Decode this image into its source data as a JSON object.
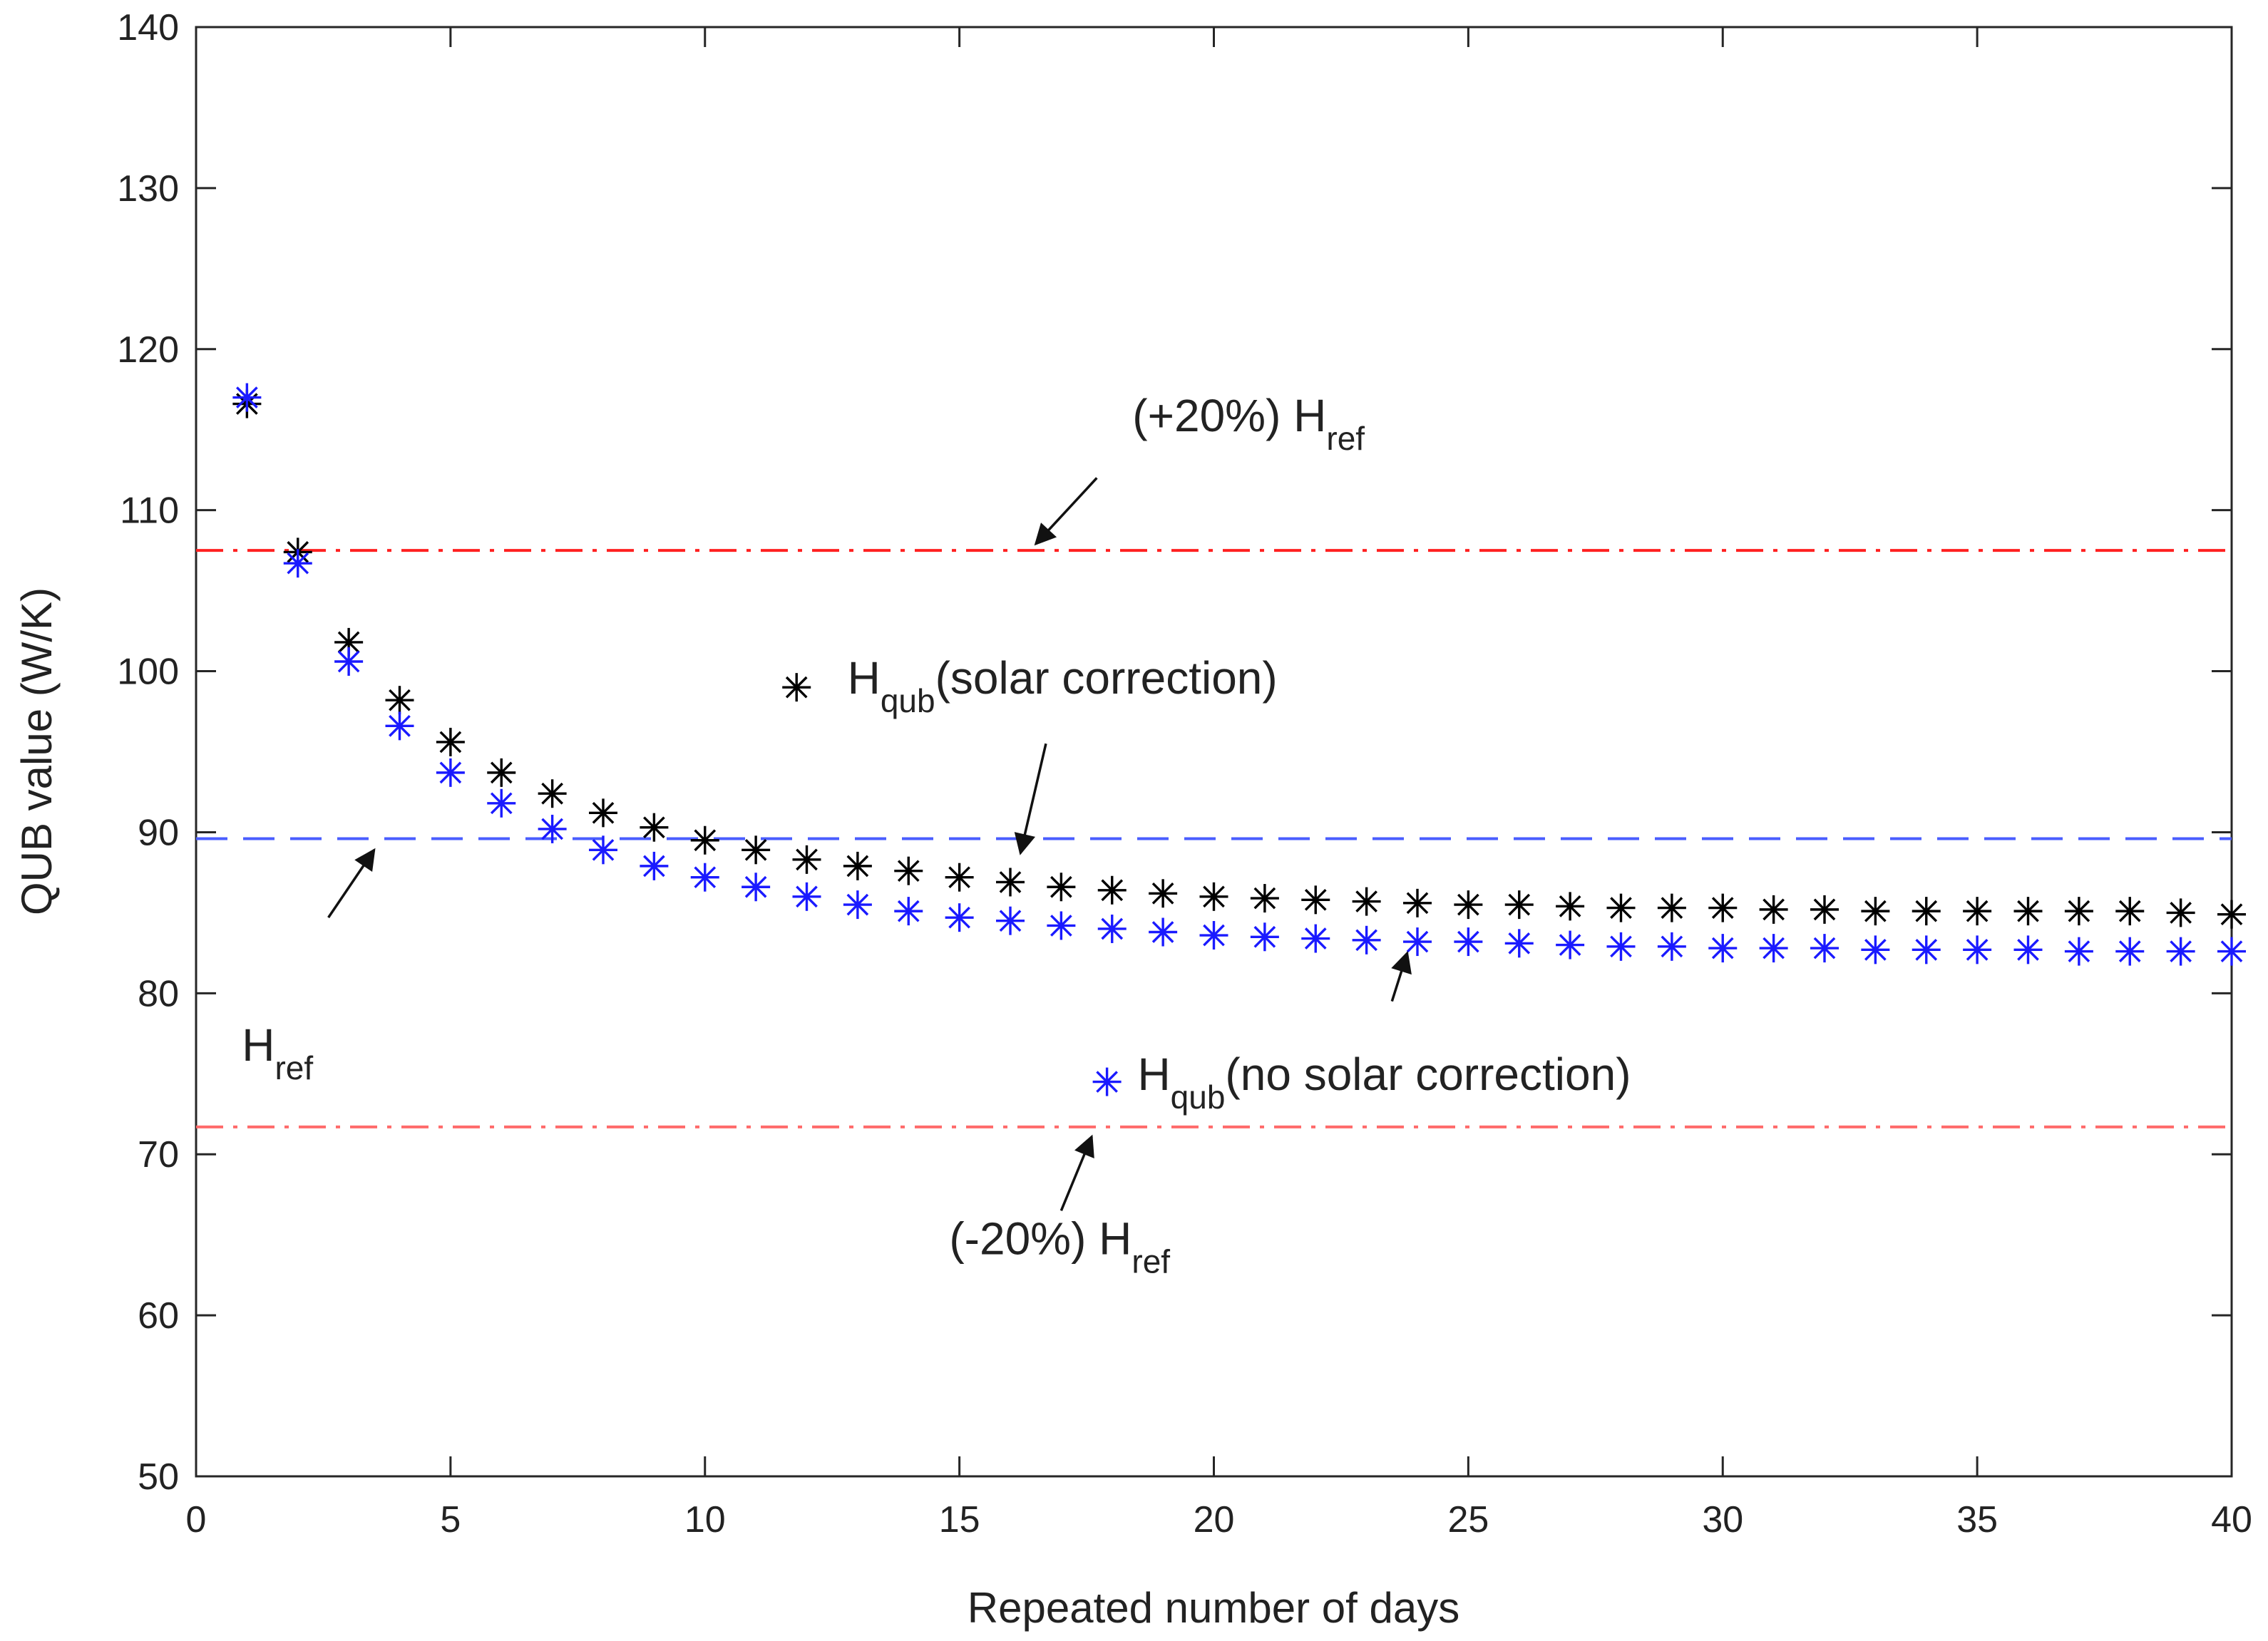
{
  "chart_data": {
    "type": "scatter",
    "title": "",
    "xlabel": "Repeated number of days",
    "ylabel": "QUB value (W/K)",
    "xlim": [
      0,
      40
    ],
    "ylim": [
      50,
      140
    ],
    "xticks": [
      0,
      5,
      10,
      15,
      20,
      25,
      30,
      35,
      40
    ],
    "yticks": [
      50,
      60,
      70,
      80,
      90,
      100,
      110,
      120,
      130,
      140
    ],
    "xtick_labels": [
      "0",
      "5",
      "10",
      "15",
      "20",
      "25",
      "30",
      "35",
      "40"
    ],
    "ytick_labels": [
      "50",
      "60",
      "70",
      "80",
      "90",
      "100",
      "110",
      "120",
      "130",
      "140"
    ],
    "grid": false,
    "series": [
      {
        "name": "H_qub (solar correction)",
        "marker": "*",
        "color": "#000000",
        "x": [
          1,
          2,
          3,
          4,
          5,
          6,
          7,
          8,
          9,
          10,
          11,
          12,
          13,
          14,
          15,
          16,
          17,
          18,
          19,
          20,
          21,
          22,
          23,
          24,
          25,
          26,
          27,
          28,
          29,
          30,
          31,
          32,
          33,
          34,
          35,
          36,
          37,
          38,
          39,
          40
        ],
        "y": [
          116.6,
          107.4,
          101.8,
          98.2,
          95.6,
          93.7,
          92.4,
          91.2,
          90.3,
          89.5,
          88.9,
          88.3,
          87.9,
          87.6,
          87.2,
          86.9,
          86.6,
          86.4,
          86.2,
          86.0,
          85.9,
          85.8,
          85.7,
          85.6,
          85.5,
          85.5,
          85.4,
          85.3,
          85.3,
          85.3,
          85.2,
          85.2,
          85.1,
          85.1,
          85.1,
          85.1,
          85.1,
          85.1,
          85.0,
          84.9
        ]
      },
      {
        "name": "H_qub (no solar correction)",
        "marker": "*",
        "color": "#1a1aff",
        "x": [
          1,
          2,
          3,
          4,
          5,
          6,
          7,
          8,
          9,
          10,
          11,
          12,
          13,
          14,
          15,
          16,
          17,
          18,
          19,
          20,
          21,
          22,
          23,
          24,
          25,
          26,
          27,
          28,
          29,
          30,
          31,
          32,
          33,
          34,
          35,
          36,
          37,
          38,
          39,
          40
        ],
        "y": [
          117.0,
          106.7,
          100.6,
          96.6,
          93.7,
          91.8,
          90.2,
          88.9,
          87.9,
          87.2,
          86.6,
          86.0,
          85.5,
          85.1,
          84.7,
          84.5,
          84.2,
          84.0,
          83.8,
          83.6,
          83.5,
          83.4,
          83.3,
          83.2,
          83.2,
          83.1,
          83.0,
          82.9,
          82.9,
          82.8,
          82.8,
          82.8,
          82.7,
          82.7,
          82.7,
          82.7,
          82.6,
          82.6,
          82.6,
          82.6
        ]
      }
    ],
    "reference_lines": [
      {
        "name": "(+20%) H_ref",
        "y": 107.5,
        "style": "dash-dot",
        "color": "#ff2020"
      },
      {
        "name": "H_ref",
        "y": 89.6,
        "style": "dashed",
        "color": "#4a5dff"
      },
      {
        "name": "(-20%) H_ref",
        "y": 71.7,
        "style": "dash-dot",
        "color": "#ff6a6a"
      }
    ],
    "annotations": [
      {
        "id": "plus20",
        "main": "(+20%) H",
        "sub": "ref",
        "tail": "",
        "text_at": [
          18.4,
          114.9
        ],
        "arrow_from": [
          17.7,
          112.0
        ],
        "arrow_to": [
          16.5,
          107.9
        ]
      },
      {
        "id": "href",
        "main": "H",
        "sub": "ref",
        "tail": "",
        "text_at": [
          0.9,
          75.8
        ],
        "arrow_from": [
          2.6,
          84.7
        ],
        "arrow_to": [
          3.5,
          88.9
        ]
      },
      {
        "id": "solar",
        "main": "H",
        "sub": "qub",
        "tail": "(solar correction)",
        "text_at": [
          12.8,
          98.6
        ],
        "marker_at": [
          11.8,
          99.0
        ],
        "arrow_from": [
          16.7,
          95.5
        ],
        "arrow_to": [
          16.2,
          88.7
        ]
      },
      {
        "id": "nosolar",
        "main": "H",
        "sub": "qub",
        "tail": "(no solar correction)",
        "text_at": [
          18.5,
          74.0
        ],
        "marker_at": [
          17.9,
          74.5
        ],
        "arrow_from": [
          23.5,
          79.5
        ],
        "arrow_to": [
          23.8,
          82.5
        ]
      },
      {
        "id": "minus20",
        "main": "(-20%) H",
        "sub": "ref",
        "tail": "",
        "text_at": [
          14.8,
          63.8
        ],
        "arrow_from": [
          17.0,
          66.5
        ],
        "arrow_to": [
          17.6,
          71.1
        ]
      }
    ]
  }
}
